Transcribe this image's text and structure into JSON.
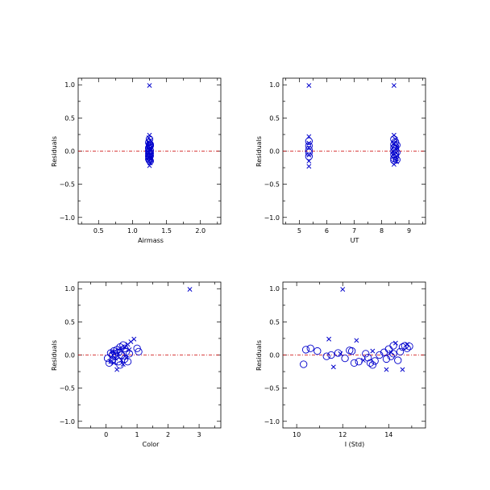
{
  "colors": {
    "background": "#ffffff",
    "axes": "#000000",
    "points": "#0000cc",
    "zero_line": "#cc0000"
  },
  "chart_data": [
    {
      "type": "scatter",
      "xlabel": "Airmass",
      "ylabel": "Residuals",
      "xlim": [
        0.2,
        2.3
      ],
      "ylim": [
        -1.1,
        1.1
      ],
      "xticks": [
        0.5,
        1.0,
        1.5,
        2.0
      ],
      "xtick_labels": [
        "0.5",
        "1.0",
        "1.5",
        "2.0"
      ],
      "yticks": [
        -1.0,
        -0.5,
        0.0,
        0.5,
        1.0
      ],
      "ytick_labels": [
        "−1.0",
        "−0.5",
        "0.0",
        "0.5",
        "1.0"
      ],
      "zero_line": 0.0,
      "series": [
        {
          "marker": "x",
          "points": [
            [
              1.25,
              0.99
            ],
            [
              1.25,
              0.24
            ],
            [
              1.24,
              0.2
            ],
            [
              1.26,
              0.16
            ],
            [
              1.25,
              0.12
            ],
            [
              1.24,
              0.08
            ],
            [
              1.26,
              0.05
            ],
            [
              1.25,
              0.02
            ],
            [
              1.24,
              -0.02
            ],
            [
              1.26,
              -0.06
            ],
            [
              1.25,
              -0.1
            ],
            [
              1.24,
              -0.14
            ],
            [
              1.26,
              -0.18
            ],
            [
              1.25,
              -0.22
            ],
            [
              1.24,
              0.14
            ],
            [
              1.26,
              -0.12
            ]
          ]
        },
        {
          "marker": "o",
          "points": [
            [
              1.25,
              0.18
            ],
            [
              1.24,
              0.13
            ],
            [
              1.26,
              0.1
            ],
            [
              1.25,
              0.07
            ],
            [
              1.24,
              0.04
            ],
            [
              1.26,
              0.01
            ],
            [
              1.25,
              -0.01
            ],
            [
              1.24,
              -0.04
            ],
            [
              1.26,
              -0.07
            ],
            [
              1.25,
              -0.09
            ],
            [
              1.24,
              -0.12
            ],
            [
              1.26,
              -0.15
            ],
            [
              1.25,
              0.1
            ],
            [
              1.24,
              0.05
            ],
            [
              1.26,
              -0.03
            ],
            [
              1.25,
              -0.05
            ],
            [
              1.24,
              0.0
            ],
            [
              1.26,
              0.08
            ],
            [
              1.25,
              -0.14
            ],
            [
              1.24,
              -0.08
            ]
          ]
        }
      ]
    },
    {
      "type": "scatter",
      "xlabel": "UT",
      "ylabel": "Residuals",
      "xlim": [
        4.4,
        9.6
      ],
      "ylim": [
        -1.1,
        1.1
      ],
      "xticks": [
        5,
        6,
        7,
        8,
        9
      ],
      "xtick_labels": [
        "5",
        "6",
        "7",
        "8",
        "9"
      ],
      "yticks": [
        -1.0,
        -0.5,
        0.0,
        0.5,
        1.0
      ],
      "ytick_labels": [
        "−1.0",
        "−0.5",
        "0.0",
        "0.5",
        "1.0"
      ],
      "zero_line": 0.0,
      "series": [
        {
          "marker": "x",
          "points": [
            [
              5.35,
              0.99
            ],
            [
              8.45,
              0.99
            ],
            [
              5.35,
              0.22
            ],
            [
              5.35,
              0.12
            ],
            [
              5.35,
              0.05
            ],
            [
              5.35,
              -0.06
            ],
            [
              5.35,
              -0.15
            ],
            [
              5.35,
              -0.23
            ],
            [
              8.45,
              0.24
            ],
            [
              8.5,
              0.18
            ],
            [
              8.45,
              0.12
            ],
            [
              8.55,
              0.06
            ],
            [
              8.45,
              -0.04
            ],
            [
              8.5,
              -0.12
            ],
            [
              8.45,
              -0.2
            ],
            [
              8.55,
              -0.16
            ]
          ]
        },
        {
          "marker": "o",
          "points": [
            [
              5.35,
              0.08
            ],
            [
              5.35,
              0.02
            ],
            [
              5.35,
              -0.02
            ],
            [
              5.35,
              -0.08
            ],
            [
              5.35,
              0.15
            ],
            [
              8.45,
              0.18
            ],
            [
              8.5,
              0.14
            ],
            [
              8.45,
              0.1
            ],
            [
              8.55,
              0.09
            ],
            [
              8.45,
              0.05
            ],
            [
              8.5,
              0.03
            ],
            [
              8.45,
              0.0
            ],
            [
              8.55,
              -0.02
            ],
            [
              8.45,
              -0.05
            ],
            [
              8.5,
              -0.08
            ],
            [
              8.45,
              -0.11
            ],
            [
              8.55,
              -0.13
            ],
            [
              8.5,
              0.07
            ],
            [
              8.45,
              -0.14
            ],
            [
              8.5,
              -0.03
            ]
          ]
        }
      ]
    },
    {
      "type": "scatter",
      "xlabel": "Color",
      "ylabel": "Residuals",
      "xlim": [
        -0.9,
        3.7
      ],
      "ylim": [
        -1.1,
        1.1
      ],
      "xticks": [
        0,
        1,
        2,
        3
      ],
      "xtick_labels": [
        "0",
        "1",
        "2",
        "3"
      ],
      "yticks": [
        -1.0,
        -0.5,
        0.0,
        0.5,
        1.0
      ],
      "ytick_labels": [
        "−1.0",
        "−0.5",
        "0.0",
        "0.5",
        "1.0"
      ],
      "zero_line": 0.0,
      "series": [
        {
          "marker": "x",
          "points": [
            [
              2.7,
              0.99
            ],
            [
              0.9,
              0.24
            ],
            [
              0.8,
              0.2
            ],
            [
              0.7,
              0.16
            ],
            [
              0.35,
              -0.22
            ],
            [
              0.25,
              -0.12
            ],
            [
              0.5,
              -0.08
            ],
            [
              0.6,
              0.12
            ],
            [
              0.2,
              0.05
            ],
            [
              0.45,
              0.1
            ],
            [
              0.3,
              -0.05
            ],
            [
              0.55,
              -0.14
            ],
            [
              0.4,
              0.02
            ],
            [
              0.65,
              -0.04
            ],
            [
              0.15,
              -0.1
            ],
            [
              0.75,
              0.08
            ]
          ]
        },
        {
          "marker": "o",
          "points": [
            [
              0.05,
              -0.05
            ],
            [
              0.1,
              -0.12
            ],
            [
              0.15,
              0.03
            ],
            [
              0.2,
              -0.08
            ],
            [
              0.25,
              0.06
            ],
            [
              0.3,
              -0.02
            ],
            [
              0.35,
              0.08
            ],
            [
              0.4,
              -0.1
            ],
            [
              0.45,
              0.12
            ],
            [
              0.5,
              0.0
            ],
            [
              0.55,
              0.15
            ],
            [
              0.6,
              -0.06
            ],
            [
              0.65,
              0.05
            ],
            [
              0.7,
              -0.1
            ],
            [
              0.75,
              0.02
            ],
            [
              1.0,
              0.1
            ],
            [
              1.05,
              0.05
            ],
            [
              0.45,
              -0.15
            ],
            [
              0.3,
              0.02
            ],
            [
              0.6,
              0.1
            ],
            [
              0.2,
              0.0
            ],
            [
              0.4,
              0.04
            ]
          ]
        }
      ]
    },
    {
      "type": "scatter",
      "xlabel": "I (Std)",
      "ylabel": "Residuals",
      "xlim": [
        9.4,
        15.6
      ],
      "ylim": [
        -1.1,
        1.1
      ],
      "xticks": [
        10,
        12,
        14
      ],
      "xtick_labels": [
        "10",
        "12",
        "14"
      ],
      "yticks": [
        -1.0,
        -0.5,
        0.0,
        0.5,
        1.0
      ],
      "ytick_labels": [
        "−1.0",
        "−0.5",
        "0.0",
        "0.5",
        "1.0"
      ],
      "zero_line": 0.0,
      "series": [
        {
          "marker": "x",
          "points": [
            [
              12.0,
              0.99
            ],
            [
              11.4,
              0.24
            ],
            [
              12.6,
              0.22
            ],
            [
              11.6,
              -0.18
            ],
            [
              13.9,
              -0.22
            ],
            [
              14.6,
              -0.22
            ],
            [
              14.3,
              0.18
            ],
            [
              13.3,
              0.06
            ],
            [
              14.8,
              0.16
            ],
            [
              12.9,
              -0.08
            ],
            [
              11.9,
              0.02
            ],
            [
              14.1,
              0.04
            ]
          ]
        },
        {
          "marker": "o",
          "points": [
            [
              10.3,
              -0.14
            ],
            [
              10.4,
              0.08
            ],
            [
              10.6,
              0.1
            ],
            [
              10.9,
              0.06
            ],
            [
              11.3,
              -0.02
            ],
            [
              11.5,
              0.0
            ],
            [
              11.8,
              0.03
            ],
            [
              12.1,
              -0.05
            ],
            [
              12.4,
              0.06
            ],
            [
              12.5,
              -0.12
            ],
            [
              12.7,
              -0.1
            ],
            [
              13.0,
              0.02
            ],
            [
              13.1,
              -0.04
            ],
            [
              13.2,
              -0.12
            ],
            [
              13.4,
              -0.09
            ],
            [
              13.6,
              0.0
            ],
            [
              13.8,
              0.04
            ],
            [
              13.9,
              -0.06
            ],
            [
              14.0,
              0.09
            ],
            [
              14.1,
              -0.02
            ],
            [
              14.2,
              0.14
            ],
            [
              14.4,
              -0.08
            ],
            [
              14.5,
              0.05
            ],
            [
              14.6,
              0.12
            ],
            [
              14.7,
              0.14
            ],
            [
              14.8,
              0.1
            ],
            [
              14.2,
              0.02
            ],
            [
              13.3,
              -0.15
            ],
            [
              12.3,
              0.07
            ],
            [
              14.9,
              0.13
            ]
          ]
        }
      ]
    }
  ]
}
